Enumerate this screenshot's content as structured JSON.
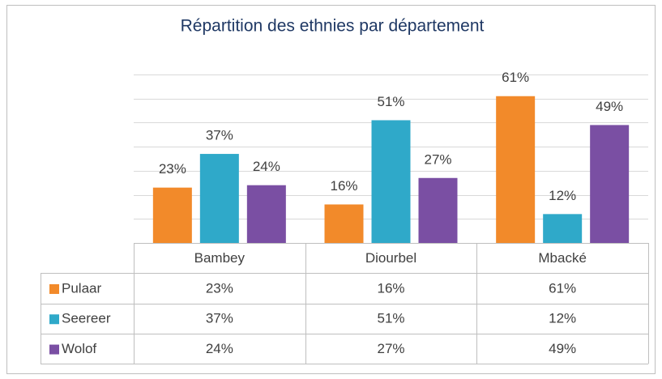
{
  "chart_data": {
    "type": "bar",
    "title": "Répartition des ethnies par département",
    "categories": [
      "Bambey",
      "Diourbel",
      "Mbacké"
    ],
    "series": [
      {
        "name": "Pulaar",
        "color": "#f28a2a",
        "values": [
          23,
          16,
          61
        ],
        "value_labels": [
          "23%",
          "16%",
          "61%"
        ]
      },
      {
        "name": "Seereer",
        "color": "#2fa9c9",
        "values": [
          37,
          51,
          12
        ],
        "value_labels": [
          "37%",
          "51%",
          "12%"
        ]
      },
      {
        "name": "Wolof",
        "color": "#7a4fa3",
        "values": [
          24,
          27,
          49
        ],
        "value_labels": [
          "24%",
          "27%",
          "49%"
        ]
      }
    ],
    "ylim": [
      0,
      70
    ],
    "yticks": [
      0,
      10,
      20,
      30,
      40,
      50,
      60,
      70
    ],
    "grid": true,
    "data_table": true
  }
}
